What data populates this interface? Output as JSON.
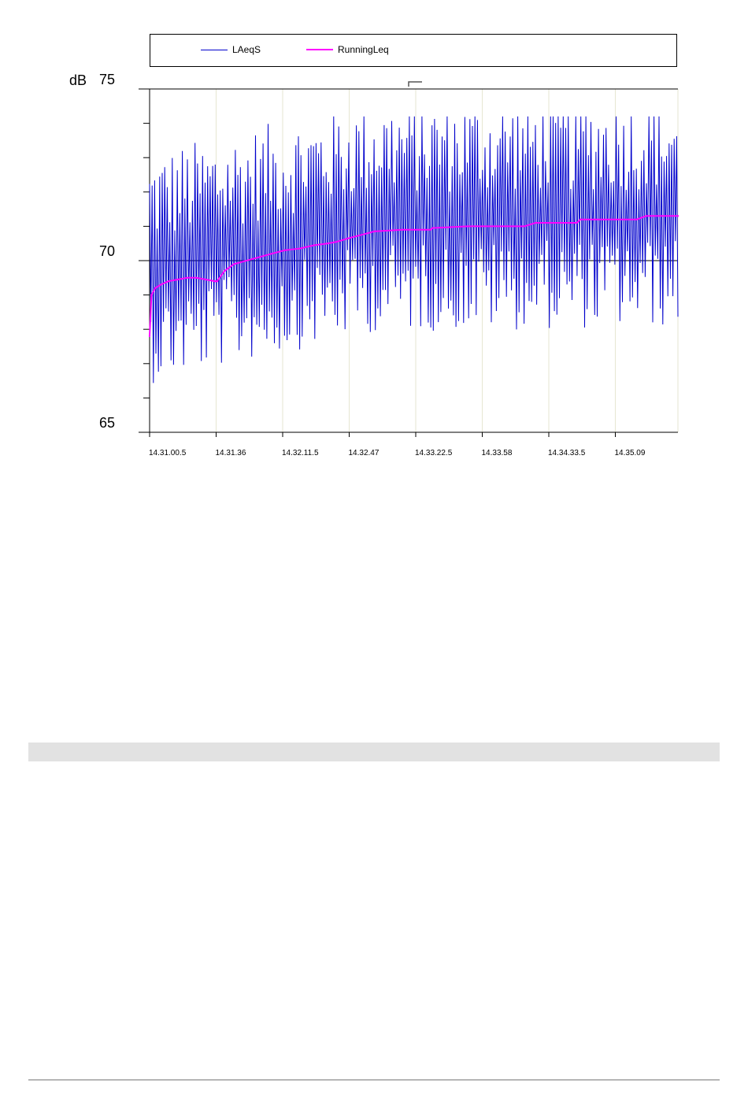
{
  "chart_data": {
    "type": "line",
    "ylabel": "dB",
    "ylim": [
      65,
      75
    ],
    "ytick_labels": [
      "75",
      "70",
      "65"
    ],
    "ytick_values": [
      75,
      70,
      65
    ],
    "ytick_minor": [
      74,
      73,
      72,
      71,
      69,
      68,
      67,
      66
    ],
    "x_categories": [
      "14.31.00.5",
      "14.31.36",
      "14.32.11.5",
      "14.32.47",
      "14.33.22.5",
      "14.33.58",
      "14.34.33.5",
      "14.35.09"
    ],
    "x_range_seconds": [
      0,
      282
    ],
    "grid": true,
    "legend_position": "top",
    "series": [
      {
        "name": "LAeqS",
        "color": "#0000cc",
        "description_values": {
          "count": 420,
          "min": 65.7,
          "max": 74.2
        }
      },
      {
        "name": "RunningLeq",
        "color": "#ff00ff",
        "points": [
          [
            0,
            67.8
          ],
          [
            1,
            69.0
          ],
          [
            3,
            69.2
          ],
          [
            6,
            69.3
          ],
          [
            10,
            69.4
          ],
          [
            15,
            69.45
          ],
          [
            20,
            69.5
          ],
          [
            25,
            69.5
          ],
          [
            30,
            69.45
          ],
          [
            35,
            69.4
          ],
          [
            36,
            69.4
          ],
          [
            40,
            69.7
          ],
          [
            45,
            69.9
          ],
          [
            55,
            70.05
          ],
          [
            65,
            70.2
          ],
          [
            72,
            70.3
          ],
          [
            80,
            70.35
          ],
          [
            88,
            70.45
          ],
          [
            95,
            70.5
          ],
          [
            100,
            70.55
          ],
          [
            106,
            70.65
          ],
          [
            113,
            70.75
          ],
          [
            120,
            70.85
          ],
          [
            135,
            70.9
          ],
          [
            150,
            70.9
          ],
          [
            151,
            70.95
          ],
          [
            170,
            71.0
          ],
          [
            200,
            71.0
          ],
          [
            206,
            71.1
          ],
          [
            228,
            71.1
          ],
          [
            230,
            71.2
          ],
          [
            260,
            71.2
          ],
          [
            265,
            71.3
          ],
          [
            282,
            71.3
          ]
        ]
      }
    ]
  },
  "legend": {
    "items": [
      {
        "label": "LAeqS",
        "color": "#0000cc"
      },
      {
        "label": "RunningLeq",
        "color": "#ff00ff"
      }
    ]
  }
}
